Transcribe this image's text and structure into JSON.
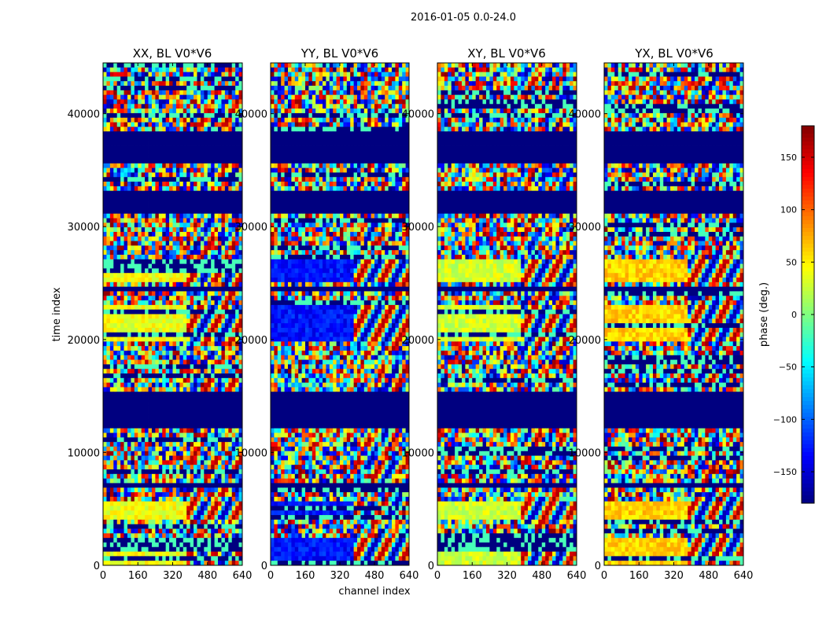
{
  "chart_data": {
    "type": "heatmap",
    "suptitle": "2016-01-05 0.0-24.0",
    "xlabel": "channel index",
    "ylabel": "time index",
    "xlim": [
      0,
      640
    ],
    "ylim": [
      0,
      44500
    ],
    "xticks": [
      0,
      160,
      320,
      480,
      640
    ],
    "yticks": [
      0,
      10000,
      20000,
      30000,
      40000
    ],
    "colorbar": {
      "label": "phase (deg.)",
      "range": [
        -180,
        180
      ],
      "ticks": [
        150,
        100,
        50,
        0,
        -50,
        -100,
        -150
      ],
      "tick_labels": [
        "150",
        "100",
        "50",
        "0",
        "−50",
        "−100",
        "−150"
      ],
      "colormap": "jet"
    },
    "panels": [
      {
        "title": "XX, BL V0*V6",
        "low_band_phase": 40
      },
      {
        "title": "YY, BL V0*V6",
        "low_band_phase": -130
      },
      {
        "title": "XY, BL V0*V6",
        "low_band_phase": 30
      },
      {
        "title": "YX, BL V0*V6",
        "low_band_phase": 60
      }
    ],
    "structure": {
      "flagged_time_ranges": [
        [
          12100,
          15200
        ],
        [
          35500,
          38300
        ],
        [
          31000,
          33000
        ],
        [
          24100,
          24600
        ],
        [
          6800,
          7400
        ]
      ],
      "flagged_value_deg": -180,
      "coherent_bands_time": [
        [
          0,
          2500
        ],
        [
          4000,
          5500
        ],
        [
          20000,
          23000
        ],
        [
          25000,
          27000
        ]
      ],
      "fringe_channel_start": 380
    }
  }
}
